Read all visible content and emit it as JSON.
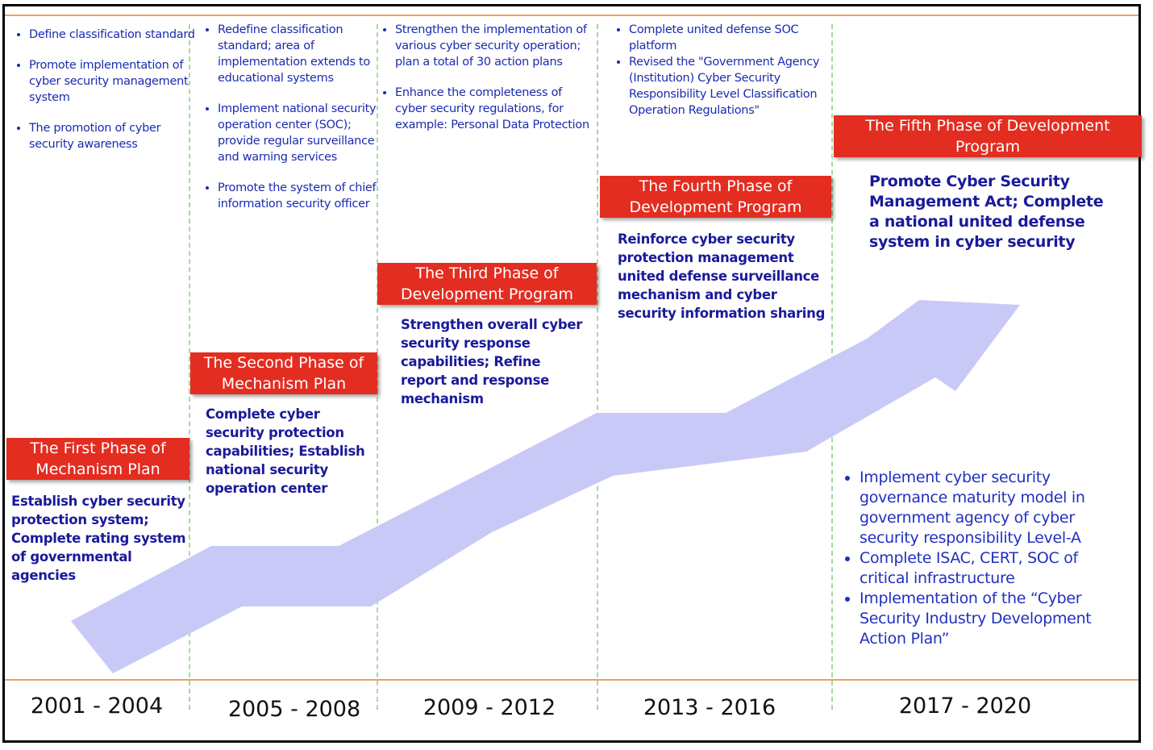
{
  "phases": [
    {
      "title": "The First Phase of Mechanism Plan",
      "summary": "Establish cyber security protection system; Complete rating system of governmental agencies",
      "bullets": [
        "Define classification standard",
        "Promote implementation of cyber security management system",
        "The promotion of cyber security awareness"
      ],
      "period": "2001 - 2004"
    },
    {
      "title": "The Second Phase of Mechanism Plan",
      "summary": "Complete cyber security protection capabilities; Establish national security operation center",
      "bullets": [
        "Redefine  classification standard; area of implementation extends to educational systems",
        "Implement national security operation center (SOC); provide regular surveillance and warning services",
        "Promote the system of chief information security officer"
      ],
      "period": "2005 - 2008"
    },
    {
      "title": "The Third Phase of Development Program",
      "summary": "Strengthen overall cyber security response capabilities; Refine report and response mechanism",
      "bullets": [
        "Strengthen the implementation of various cyber security operation; plan a total of 30 action plans",
        "Enhance the completeness of cyber security regulations, for example: Personal Data Protection"
      ],
      "period": "2009 - 2012"
    },
    {
      "title": "The Fourth Phase of Development Program",
      "summary": "Reinforce cyber security protection management united defense surveillance mechanism and cyber security information sharing",
      "bullets": [
        "Complete united defense SOC platform",
        "Revised the \"Government Agency (Institution) Cyber Security Responsibility Level Classification Operation Regulations\""
      ],
      "period": "2013 - 2016"
    },
    {
      "title": "The Fifth Phase of Development Program",
      "summary": "Promote Cyber Security Management Act; Complete a national  united defense system in cyber security",
      "bullets": [
        "Implement cyber security governance maturity  model in government agency of cyber security responsibility Level-A",
        "Complete ISAC, CERT, SOC of critical infrastructure",
        "Implementation of the  “Cyber Security Industry Development Action Plan”"
      ],
      "period": "2017  - 2020"
    }
  ]
}
